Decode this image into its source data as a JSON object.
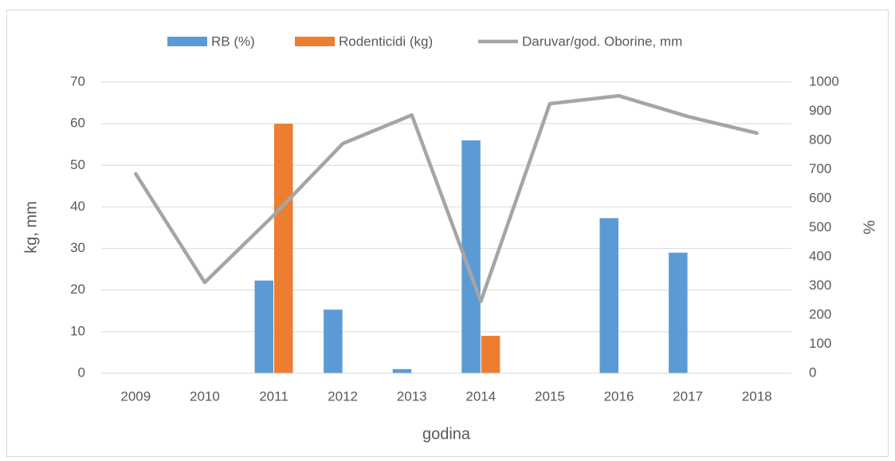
{
  "chart_data": {
    "type": "bar",
    "x_label": "godina",
    "y_label": "kg, mm",
    "y2_label": "%",
    "categories": [
      "2009",
      "2010",
      "2011",
      "2012",
      "2013",
      "2014",
      "2015",
      "2016",
      "2017",
      "2018"
    ],
    "series": [
      {
        "name": "RB (%)",
        "color": "#5b9bd5",
        "type": "bar",
        "values": [
          0,
          0,
          22.3,
          15.3,
          1,
          56,
          0,
          37.3,
          29,
          0
        ]
      },
      {
        "name": "Rodenticidi (kg)",
        "color": "#ed7d31",
        "type": "bar",
        "values": [
          0,
          0,
          60,
          0,
          0,
          9,
          0,
          0,
          0,
          0
        ]
      },
      {
        "name": "Daruvar/god. Oborine, mm",
        "color": "#a5a5a5",
        "type": "line",
        "axis": "y2",
        "values": [
          685,
          312,
          543,
          789,
          887,
          247,
          926,
          953,
          882,
          825
        ]
      }
    ],
    "ylim": [
      0,
      70
    ],
    "yticks": [
      0,
      10,
      20,
      30,
      40,
      50,
      60,
      70
    ],
    "y2lim": [
      0,
      1000
    ],
    "y2ticks": [
      0,
      100,
      200,
      300,
      400,
      500,
      600,
      700,
      800,
      900,
      1000
    ],
    "grid": true,
    "legend": "top"
  }
}
